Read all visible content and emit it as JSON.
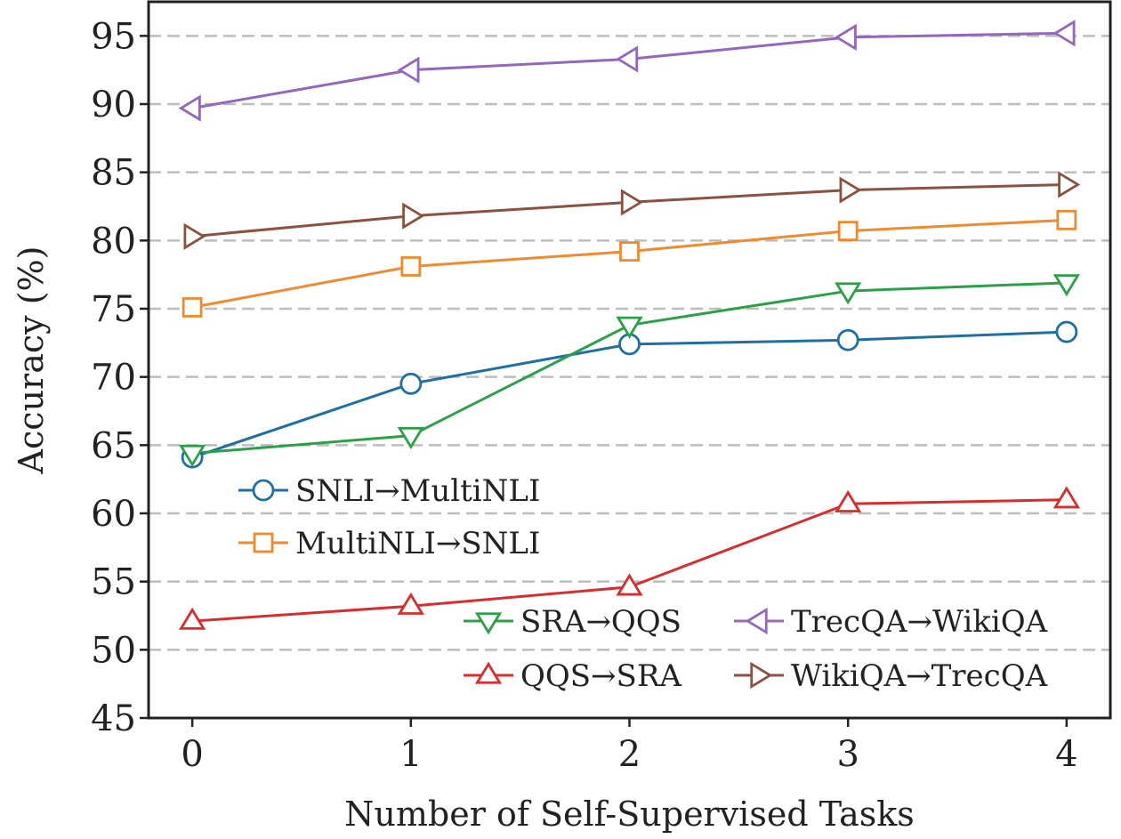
{
  "chart_data": {
    "type": "line",
    "xlabel": "Number of Self-Supervised Tasks",
    "ylabel": "Accuracy (%)",
    "x": [
      0,
      1,
      2,
      3,
      4
    ],
    "xlim": [
      -0.2,
      4.2
    ],
    "ylim": [
      45,
      97.5
    ],
    "xticks": [
      0,
      1,
      2,
      3,
      4
    ],
    "yticks": [
      45,
      50,
      55,
      60,
      65,
      70,
      75,
      80,
      85,
      90,
      95
    ],
    "grid": "horizontal-dashed",
    "series": [
      {
        "name": "SNLI→MultiNLI",
        "values": [
          64.1,
          69.5,
          72.4,
          72.7,
          73.3
        ],
        "color": "#1f6fa5",
        "marker": "circle"
      },
      {
        "name": "MultiNLI→SNLI",
        "values": [
          75.1,
          78.1,
          79.2,
          80.7,
          81.5
        ],
        "color": "#ef8a2f",
        "marker": "square"
      },
      {
        "name": "SRA→QQS",
        "values": [
          64.4,
          65.7,
          73.8,
          76.3,
          76.9
        ],
        "color": "#2ca048",
        "marker": "triangle-down"
      },
      {
        "name": "QQS→SRA",
        "values": [
          52.1,
          53.2,
          54.6,
          60.7,
          61.0
        ],
        "color": "#d62d2d",
        "marker": "triangle-up"
      },
      {
        "name": "TrecQA→WikiQA",
        "values": [
          89.7,
          92.5,
          93.3,
          94.9,
          95.2
        ],
        "color": "#9467bd",
        "marker": "triangle-left"
      },
      {
        "name": "WikiQA→TrecQA",
        "values": [
          80.3,
          81.8,
          82.8,
          83.7,
          84.1
        ],
        "color": "#8c5140",
        "marker": "triangle-right"
      }
    ],
    "legend": [
      {
        "series": 0,
        "position": "middle-left"
      },
      {
        "series": 1,
        "position": "middle-left"
      },
      {
        "series": 2,
        "position": "bottom-right"
      },
      {
        "series": 4,
        "position": "bottom-right"
      },
      {
        "series": 3,
        "position": "bottom-right"
      },
      {
        "series": 5,
        "position": "bottom-right"
      }
    ]
  }
}
